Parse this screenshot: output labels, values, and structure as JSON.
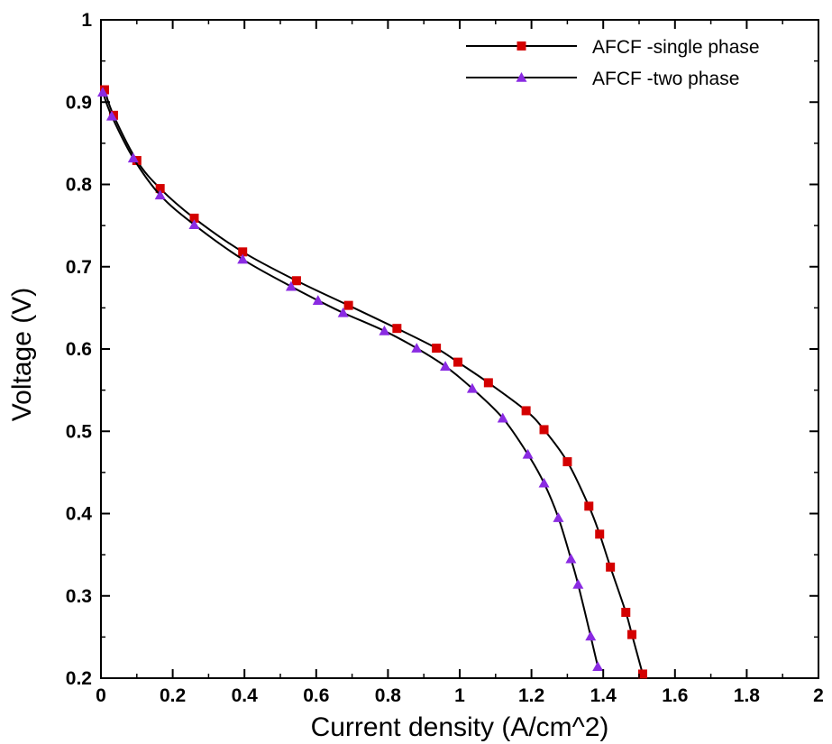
{
  "chart_data": {
    "type": "line",
    "xlabel": "Current density (A/cm^2)",
    "ylabel": "Voltage (V)",
    "xlim": [
      0,
      2
    ],
    "ylim": [
      0.2,
      1
    ],
    "x_ticks": [
      "0",
      "0.2",
      "0.4",
      "0.6",
      "0.8",
      "1",
      "1.2",
      "1.4",
      "1.6",
      "1.8",
      "2"
    ],
    "y_ticks": [
      "0.2",
      "0.3",
      "0.4",
      "0.5",
      "0.6",
      "0.7",
      "0.8",
      "0.9",
      "1"
    ],
    "grid": false,
    "legend_position": "top-right",
    "series": [
      {
        "name": "AFCF -single phase",
        "marker": "square",
        "marker_color": "#d40000",
        "line_color": "#000000",
        "points": [
          [
            0.01,
            0.915
          ],
          [
            0.035,
            0.884
          ],
          [
            0.1,
            0.829
          ],
          [
            0.165,
            0.795
          ],
          [
            0.26,
            0.759
          ],
          [
            0.395,
            0.718
          ],
          [
            0.545,
            0.683
          ],
          [
            0.69,
            0.653
          ],
          [
            0.825,
            0.625
          ],
          [
            0.935,
            0.601
          ],
          [
            0.995,
            0.584
          ],
          [
            1.08,
            0.559
          ],
          [
            1.185,
            0.525
          ],
          [
            1.235,
            0.502
          ],
          [
            1.3,
            0.463
          ],
          [
            1.36,
            0.409
          ],
          [
            1.39,
            0.375
          ],
          [
            1.42,
            0.335
          ],
          [
            1.463,
            0.28
          ],
          [
            1.48,
            0.253
          ],
          [
            1.51,
            0.205
          ]
        ]
      },
      {
        "name": "AFCF -two phase",
        "marker": "triangle",
        "marker_color": "#8a2be2",
        "line_color": "#000000",
        "points": [
          [
            0.005,
            0.912
          ],
          [
            0.03,
            0.883
          ],
          [
            0.09,
            0.832
          ],
          [
            0.165,
            0.787
          ],
          [
            0.26,
            0.751
          ],
          [
            0.395,
            0.709
          ],
          [
            0.53,
            0.676
          ],
          [
            0.605,
            0.659
          ],
          [
            0.675,
            0.644
          ],
          [
            0.79,
            0.622
          ],
          [
            0.88,
            0.601
          ],
          [
            0.96,
            0.579
          ],
          [
            1.035,
            0.552
          ],
          [
            1.12,
            0.516
          ],
          [
            1.19,
            0.472
          ],
          [
            1.235,
            0.437
          ],
          [
            1.275,
            0.395
          ],
          [
            1.31,
            0.345
          ],
          [
            1.33,
            0.314
          ],
          [
            1.365,
            0.251
          ],
          [
            1.385,
            0.214
          ]
        ]
      }
    ]
  }
}
